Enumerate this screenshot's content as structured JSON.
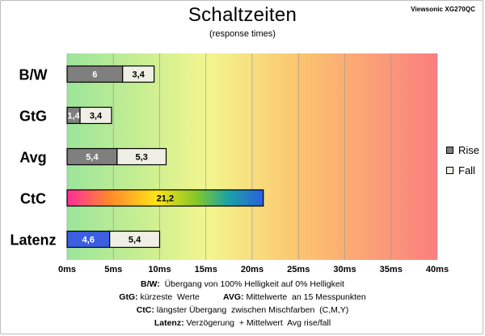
{
  "header": {
    "title": "Schaltzeiten",
    "subtitle": "(response times)",
    "brand": "Viewsonic XG270QC"
  },
  "legend": [
    {
      "label": "Rise",
      "color": "#7f7f7f"
    },
    {
      "label": "Fall",
      "color": "#efefe6"
    }
  ],
  "notes": [
    {
      "key": "B/W:",
      "text": "  Übergang von 100% Helligkeit auf 0% Helligkeit",
      "key2": "",
      "text2": ""
    },
    {
      "key": "GtG:",
      "text": " kürzeste  Werte          ",
      "key2": "AVG:",
      "text2": " Mittelwerte  an 15 Messpunkten"
    },
    {
      "key": "CtC:",
      "text": " längster Übergang  zwischen Mischfarben  (C,M,Y)",
      "key2": "",
      "text2": ""
    },
    {
      "key": "Latenz:",
      "text": " Verzögerung  + Mittelwert  Avg rise/fall",
      "key2": "",
      "text2": ""
    }
  ],
  "chart_data": {
    "type": "bar",
    "orientation": "horizontal",
    "stacked": true,
    "categories": [
      "B/W",
      "GtG",
      "Avg",
      "CtC",
      "Latenz"
    ],
    "series": [
      {
        "name": "Rise",
        "values": [
          6,
          1.4,
          5.4,
          21.2,
          4.6
        ],
        "labels": [
          "6",
          "1,4",
          "5,4",
          "21,2",
          "4,6"
        ],
        "color": "#7f7f7f"
      },
      {
        "name": "Fall",
        "values": [
          3.4,
          3.4,
          5.3,
          null,
          5.4
        ],
        "labels": [
          "3,4",
          "3,4",
          "5,3",
          "",
          "5,4"
        ],
        "color": "#efefe6"
      }
    ],
    "special_colors": {
      "CtC": "rainbow-gradient",
      "Latenz": "#3b5fe0"
    },
    "xlim": [
      0,
      40
    ],
    "xticks": [
      "0ms",
      "5ms",
      "10ms",
      "15ms",
      "20ms",
      "25ms",
      "30ms",
      "35ms",
      "40ms"
    ],
    "xtick_values": [
      0,
      5,
      10,
      15,
      20,
      25,
      30,
      35,
      40
    ],
    "grid": true,
    "background": "green-yellow-red gradient"
  }
}
